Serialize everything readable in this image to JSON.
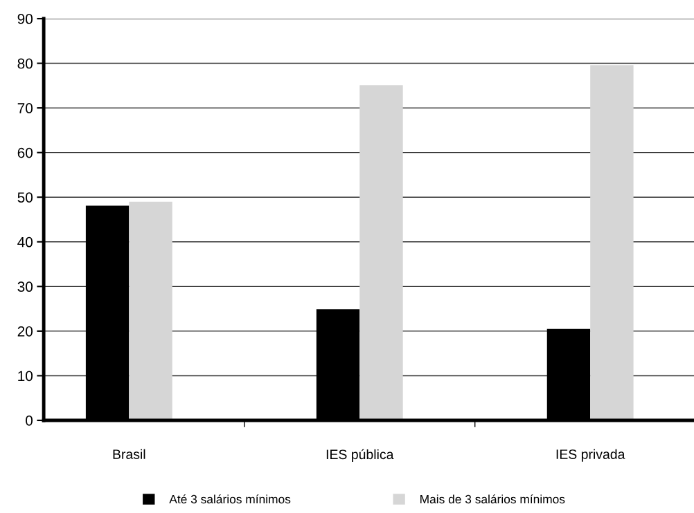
{
  "chart_data": {
    "type": "bar",
    "categories": [
      "Brasil",
      "IES pública",
      "IES privada"
    ],
    "series": [
      {
        "name": "Até 3 salários mínimos",
        "color": "#000000",
        "values": [
          48.1,
          24.9,
          20.5
        ]
      },
      {
        "name": "Mais de 3 salários mínimos",
        "color": "#d6d6d6",
        "values": [
          49.0,
          75.1,
          79.6
        ]
      }
    ],
    "ylim": [
      0,
      90
    ],
    "yticks": [
      0,
      10,
      20,
      30,
      40,
      50,
      60,
      70,
      80,
      90
    ],
    "grid": "y",
    "legend": "bottom"
  }
}
